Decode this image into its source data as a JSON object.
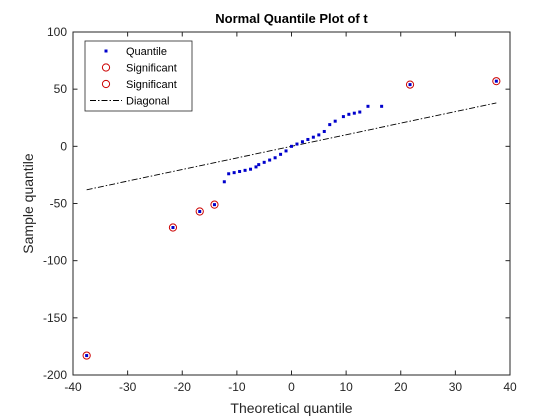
{
  "chart_data": {
    "type": "scatter",
    "title": "Normal Quantile Plot of t",
    "xlabel": "Theoretical quantile",
    "ylabel": "Sample quantile",
    "xlim": [
      -40,
      40
    ],
    "ylim": [
      -200,
      100
    ],
    "xticks": [
      -40,
      -30,
      -20,
      -10,
      0,
      10,
      20,
      30,
      40
    ],
    "yticks": [
      -200,
      -150,
      -100,
      -50,
      0,
      50,
      100
    ],
    "grid": false,
    "legend_position": "top-left",
    "legend": [
      "Quantile",
      "Significant",
      "Significant",
      "Diagonal"
    ],
    "colors": {
      "quantile": "#0000cc",
      "significant": "#cc0000",
      "diagonal": "#000000"
    },
    "series": [
      {
        "name": "Quantile",
        "marker": "square",
        "points": [
          [
            -37.5,
            -183
          ],
          [
            -21.7,
            -71
          ],
          [
            -16.8,
            -57
          ],
          [
            -14.1,
            -51
          ],
          [
            -12.3,
            -31
          ],
          [
            -11.5,
            -24
          ],
          [
            -10.5,
            -23
          ],
          [
            -9.5,
            -22
          ],
          [
            -8.5,
            -21
          ],
          [
            -7.5,
            -20
          ],
          [
            -6.5,
            -18
          ],
          [
            -6.0,
            -16
          ],
          [
            -5.0,
            -14
          ],
          [
            -4.0,
            -12
          ],
          [
            -3.0,
            -10
          ],
          [
            -2.0,
            -7
          ],
          [
            -1.0,
            -4
          ],
          [
            0.0,
            0
          ],
          [
            1.0,
            2
          ],
          [
            2.0,
            4
          ],
          [
            3.0,
            6
          ],
          [
            4.0,
            8
          ],
          [
            5.0,
            10
          ],
          [
            6.0,
            13
          ],
          [
            7.0,
            19
          ],
          [
            8.0,
            22
          ],
          [
            9.5,
            26
          ],
          [
            10.5,
            28
          ],
          [
            11.5,
            29
          ],
          [
            12.5,
            30
          ],
          [
            14.0,
            35
          ],
          [
            16.5,
            35
          ],
          [
            21.7,
            54
          ],
          [
            37.5,
            57
          ]
        ]
      },
      {
        "name": "Significant",
        "marker": "circle",
        "points": [
          [
            -37.5,
            -183
          ],
          [
            -21.7,
            -71
          ],
          [
            -16.8,
            -57
          ],
          [
            -14.1,
            -51
          ]
        ]
      },
      {
        "name": "Significant",
        "marker": "circle",
        "points": [
          [
            21.7,
            54
          ],
          [
            37.5,
            57
          ]
        ]
      },
      {
        "name": "Diagonal",
        "type": "line",
        "style": "dash-dot",
        "points": [
          [
            -37.5,
            -38
          ],
          [
            37.5,
            38
          ]
        ]
      }
    ]
  }
}
